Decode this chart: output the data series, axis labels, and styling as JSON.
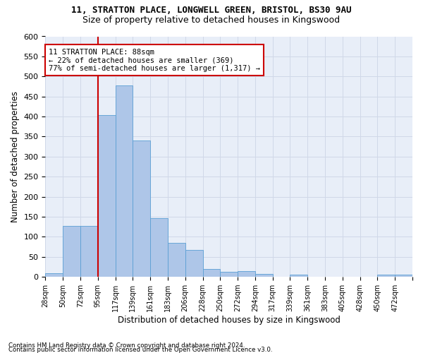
{
  "title1": "11, STRATTON PLACE, LONGWELL GREEN, BRISTOL, BS30 9AU",
  "title2": "Size of property relative to detached houses in Kingswood",
  "xlabel": "Distribution of detached houses by size in Kingswood",
  "ylabel": "Number of detached properties",
  "bar_values": [
    9,
    127,
    128,
    404,
    477,
    341,
    146,
    85,
    67,
    19,
    12,
    14,
    7,
    0,
    5,
    0,
    0,
    0,
    0,
    5,
    5
  ],
  "bar_labels": [
    "28sqm",
    "50sqm",
    "72sqm",
    "95sqm",
    "117sqm",
    "139sqm",
    "161sqm",
    "183sqm",
    "206sqm",
    "228sqm",
    "250sqm",
    "272sqm",
    "294sqm",
    "317sqm",
    "339sqm",
    "361sqm",
    "383sqm",
    "405sqm",
    "428sqm",
    "450sqm",
    "472sqm"
  ],
  "bar_color": "#aec6e8",
  "bar_edge_color": "#5a9fd4",
  "vline_x": 3.0,
  "vline_color": "#cc0000",
  "annotation_text": "11 STRATTON PLACE: 88sqm\n← 22% of detached houses are smaller (369)\n77% of semi-detached houses are larger (1,317) →",
  "annotation_box_color": "#ffffff",
  "annotation_box_edge": "#cc0000",
  "ylim": [
    0,
    600
  ],
  "yticks": [
    0,
    50,
    100,
    150,
    200,
    250,
    300,
    350,
    400,
    450,
    500,
    550,
    600
  ],
  "grid_color": "#d0d8e8",
  "bg_color": "#e8eef8",
  "footnote1": "Contains HM Land Registry data © Crown copyright and database right 2024.",
  "footnote2": "Contains public sector information licensed under the Open Government Licence v3.0."
}
